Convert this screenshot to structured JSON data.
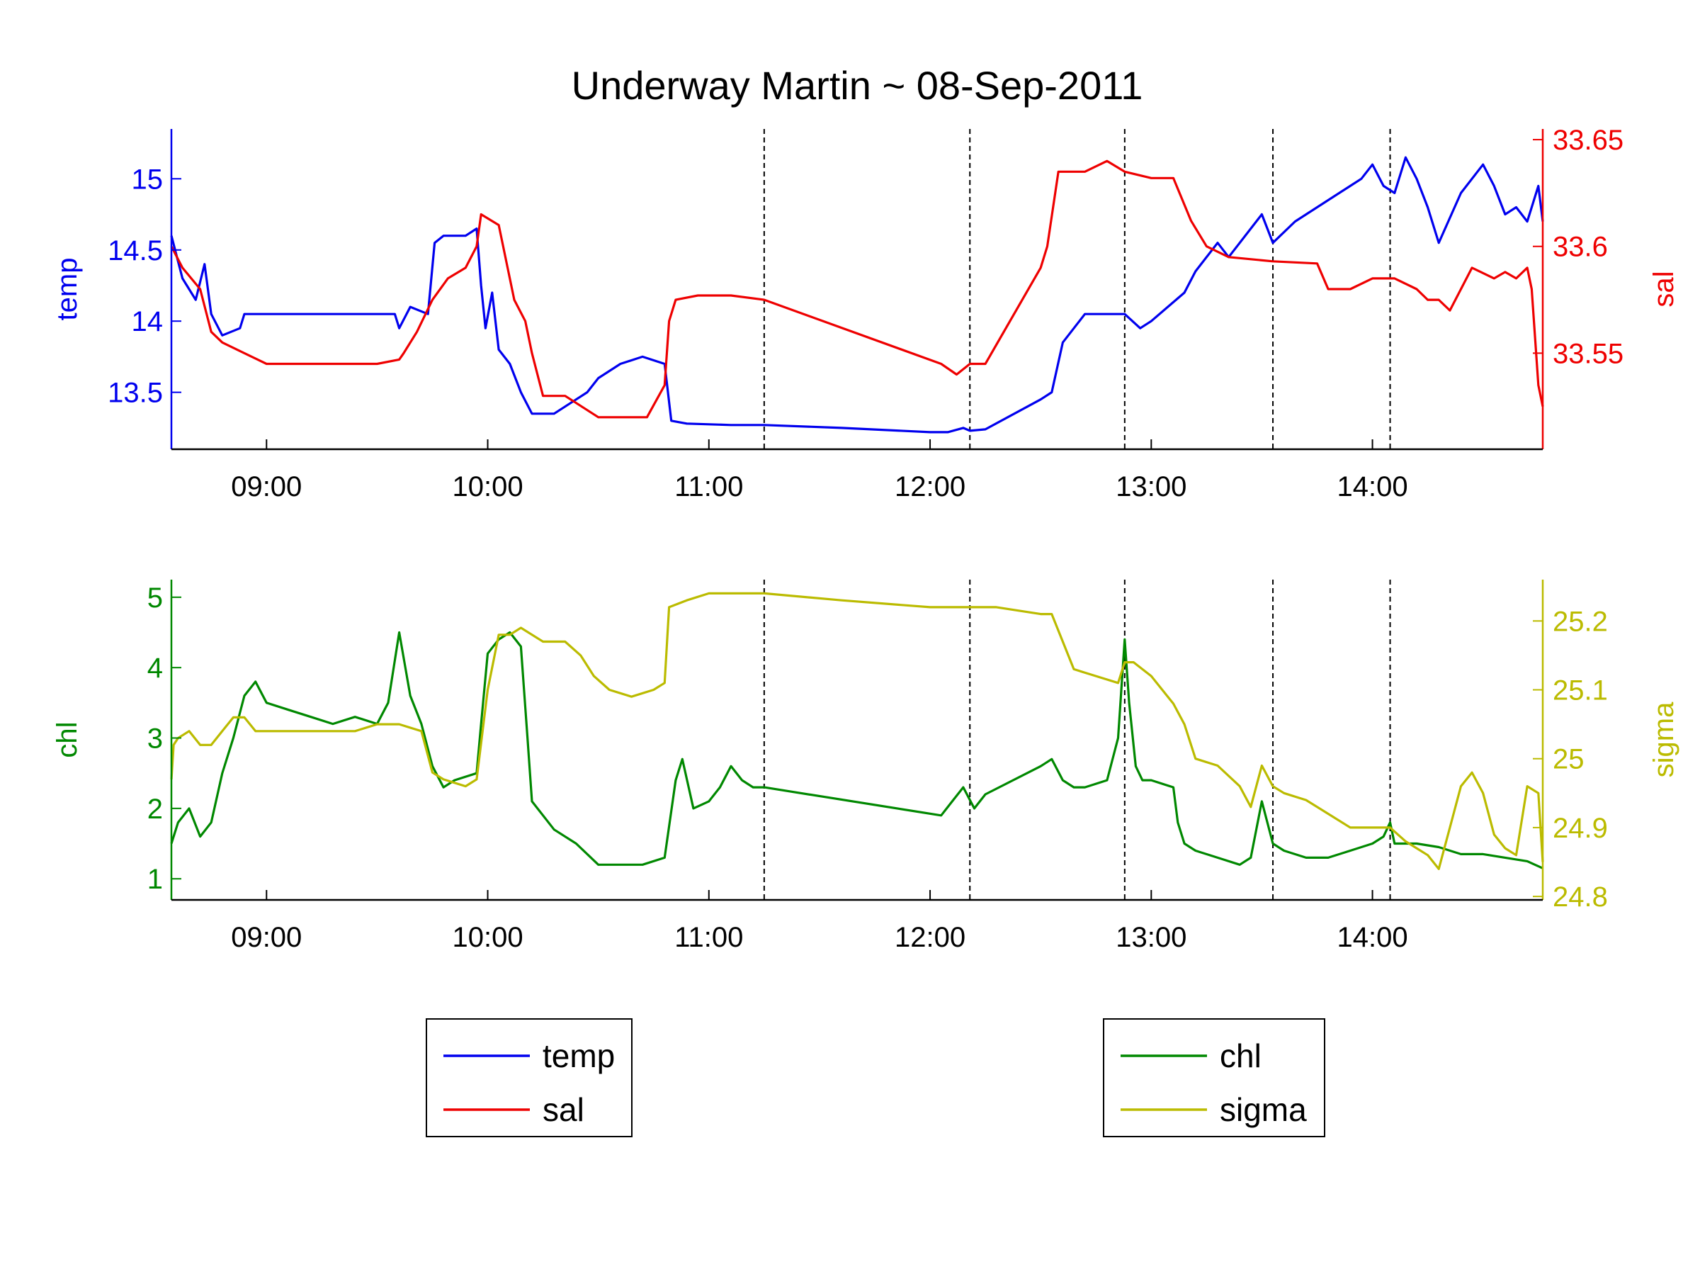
{
  "chart_data": [
    {
      "type": "line",
      "title": "Underway Martin ~ 08-Sep-2011",
      "x_ticks": [
        "09:00",
        "10:00",
        "11:00",
        "12:00",
        "13:00",
        "14:00"
      ],
      "x_tick_hours": [
        9,
        10,
        11,
        12,
        13,
        14
      ],
      "xlim_hours": [
        8.57,
        14.77
      ],
      "event_markers_hours": [
        11.25,
        12.18,
        12.88,
        13.55,
        14.08
      ],
      "left_axis": {
        "label": "temp",
        "color": "#0000ee",
        "ylim": [
          13.1,
          15.35
        ],
        "ticks": [
          13.5,
          14,
          14.5,
          15
        ],
        "tick_labels": [
          "13.5",
          "14",
          "14.5",
          "15"
        ]
      },
      "right_axis": {
        "label": "sal",
        "color": "#ee0000",
        "ylim": [
          33.505,
          33.655
        ],
        "ticks": [
          33.55,
          33.6,
          33.65
        ],
        "tick_labels": [
          "33.55",
          "33.6",
          "33.65"
        ]
      },
      "series": [
        {
          "name": "temp",
          "axis": "left",
          "color": "#0000ee",
          "x": [
            8.57,
            8.62,
            8.68,
            8.72,
            8.75,
            8.8,
            8.88,
            8.9,
            9.0,
            9.2,
            9.4,
            9.58,
            9.6,
            9.65,
            9.73,
            9.76,
            9.8,
            9.9,
            9.95,
            9.97,
            9.99,
            10.02,
            10.05,
            10.1,
            10.15,
            10.2,
            10.3,
            10.4,
            10.45,
            10.5,
            10.6,
            10.7,
            10.8,
            10.83,
            10.9,
            11.1,
            11.25,
            11.6,
            12.0,
            12.08,
            12.15,
            12.18,
            12.25,
            12.5,
            12.55,
            12.6,
            12.7,
            12.8,
            12.88,
            12.95,
            13.0,
            13.15,
            13.2,
            13.3,
            13.35,
            13.45,
            13.5,
            13.55,
            13.65,
            13.75,
            13.85,
            13.95,
            14.0,
            14.05,
            14.1,
            14.15,
            14.2,
            14.25,
            14.3,
            14.4,
            14.5,
            14.55,
            14.6,
            14.65,
            14.7,
            14.75,
            14.77
          ],
          "y": [
            14.6,
            14.3,
            14.15,
            14.4,
            14.05,
            13.9,
            13.95,
            14.05,
            14.05,
            14.05,
            14.05,
            14.05,
            13.95,
            14.1,
            14.05,
            14.55,
            14.6,
            14.6,
            14.65,
            14.25,
            13.95,
            14.2,
            13.8,
            13.7,
            13.5,
            13.35,
            13.35,
            13.45,
            13.5,
            13.6,
            13.7,
            13.75,
            13.7,
            13.3,
            13.28,
            13.27,
            13.27,
            13.25,
            13.22,
            13.22,
            13.25,
            13.23,
            13.24,
            13.45,
            13.5,
            13.85,
            14.05,
            14.05,
            14.05,
            13.95,
            14.0,
            14.2,
            14.35,
            14.55,
            14.45,
            14.65,
            14.75,
            14.55,
            14.7,
            14.8,
            14.9,
            15.0,
            15.1,
            14.95,
            14.9,
            15.15,
            15.0,
            14.8,
            14.55,
            14.9,
            15.1,
            14.95,
            14.75,
            14.8,
            14.7,
            14.95,
            14.7
          ]
        },
        {
          "name": "sal",
          "axis": "right",
          "color": "#ee0000",
          "x": [
            8.57,
            8.62,
            8.7,
            8.75,
            8.8,
            8.9,
            9.0,
            9.2,
            9.5,
            9.6,
            9.62,
            9.68,
            9.75,
            9.82,
            9.9,
            9.95,
            9.97,
            10.05,
            10.12,
            10.17,
            10.2,
            10.25,
            10.35,
            10.5,
            10.6,
            10.72,
            10.8,
            10.82,
            10.85,
            10.95,
            11.1,
            11.25,
            12.05,
            12.12,
            12.18,
            12.25,
            12.5,
            12.53,
            12.58,
            12.62,
            12.7,
            12.8,
            12.88,
            13.0,
            13.1,
            13.18,
            13.25,
            13.35,
            13.55,
            13.75,
            13.8,
            13.9,
            14.0,
            14.1,
            14.2,
            14.25,
            14.3,
            14.35,
            14.45,
            14.55,
            14.6,
            14.65,
            14.7,
            14.72,
            14.75,
            14.77
          ],
          "y": [
            33.6,
            33.59,
            33.58,
            33.56,
            33.555,
            33.55,
            33.545,
            33.545,
            33.545,
            33.547,
            33.55,
            33.56,
            33.575,
            33.585,
            33.59,
            33.6,
            33.615,
            33.61,
            33.575,
            33.565,
            33.55,
            33.53,
            33.53,
            33.52,
            33.52,
            33.52,
            33.535,
            33.565,
            33.575,
            33.577,
            33.577,
            33.575,
            33.545,
            33.54,
            33.545,
            33.545,
            33.59,
            33.6,
            33.635,
            33.635,
            33.635,
            33.64,
            33.635,
            33.632,
            33.632,
            33.612,
            33.6,
            33.595,
            33.593,
            33.592,
            33.58,
            33.58,
            33.585,
            33.585,
            33.58,
            33.575,
            33.575,
            33.57,
            33.59,
            33.585,
            33.588,
            33.585,
            33.59,
            33.58,
            33.535,
            33.525
          ]
        }
      ],
      "legend": {
        "placement": "below-left",
        "entries": [
          "temp",
          "sal"
        ]
      }
    },
    {
      "type": "line",
      "x_ticks": [
        "09:00",
        "10:00",
        "11:00",
        "12:00",
        "13:00",
        "14:00"
      ],
      "x_tick_hours": [
        9,
        10,
        11,
        12,
        13,
        14
      ],
      "xlim_hours": [
        8.57,
        14.77
      ],
      "event_markers_hours": [
        11.25,
        12.18,
        12.88,
        13.55,
        14.08
      ],
      "left_axis": {
        "label": "chl",
        "color": "#008800",
        "ylim": [
          0.7,
          5.25
        ],
        "ticks": [
          1,
          2,
          3,
          4,
          5
        ],
        "tick_labels": [
          "1",
          "2",
          "3",
          "4",
          "5"
        ]
      },
      "right_axis": {
        "label": "sigma",
        "color": "#bbbb00",
        "ylim": [
          24.795,
          25.26
        ],
        "ticks": [
          24.8,
          24.9,
          25,
          25.1,
          25.2
        ],
        "tick_labels": [
          "24.8",
          "24.9",
          "25",
          "25.1",
          "25.2"
        ]
      },
      "series": [
        {
          "name": "chl",
          "axis": "left",
          "color": "#008800",
          "x": [
            8.57,
            8.6,
            8.65,
            8.7,
            8.75,
            8.8,
            8.85,
            8.9,
            8.95,
            9.0,
            9.1,
            9.2,
            9.3,
            9.4,
            9.5,
            9.55,
            9.6,
            9.65,
            9.7,
            9.75,
            9.8,
            9.85,
            9.95,
            9.97,
            10.0,
            10.05,
            10.1,
            10.15,
            10.18,
            10.2,
            10.3,
            10.4,
            10.5,
            10.6,
            10.7,
            10.8,
            10.85,
            10.88,
            10.93,
            11.0,
            11.05,
            11.1,
            11.15,
            11.2,
            11.25,
            12.05,
            12.1,
            12.15,
            12.2,
            12.25,
            12.5,
            12.55,
            12.6,
            12.65,
            12.7,
            12.8,
            12.85,
            12.88,
            12.9,
            12.93,
            12.96,
            13.0,
            13.1,
            13.12,
            13.15,
            13.2,
            13.3,
            13.4,
            13.45,
            13.5,
            13.55,
            13.6,
            13.7,
            13.8,
            13.9,
            14.0,
            14.05,
            14.08,
            14.1,
            14.2,
            14.3,
            14.4,
            14.5,
            14.6,
            14.7,
            14.77
          ],
          "y": [
            1.5,
            1.8,
            2.0,
            1.6,
            1.8,
            2.5,
            3.0,
            3.6,
            3.8,
            3.5,
            3.4,
            3.3,
            3.2,
            3.3,
            3.2,
            3.5,
            4.5,
            3.6,
            3.2,
            2.6,
            2.3,
            2.4,
            2.5,
            3.2,
            4.2,
            4.4,
            4.5,
            4.3,
            3.0,
            2.1,
            1.7,
            1.5,
            1.2,
            1.2,
            1.2,
            1.3,
            2.4,
            2.7,
            2.0,
            2.1,
            2.3,
            2.6,
            2.4,
            2.3,
            2.3,
            1.9,
            2.1,
            2.3,
            2.0,
            2.2,
            2.6,
            2.7,
            2.4,
            2.3,
            2.3,
            2.4,
            3.0,
            4.4,
            3.5,
            2.6,
            2.4,
            2.4,
            2.3,
            1.8,
            1.5,
            1.4,
            1.3,
            1.2,
            1.3,
            2.1,
            1.5,
            1.4,
            1.3,
            1.3,
            1.4,
            1.5,
            1.6,
            1.8,
            1.5,
            1.5,
            1.45,
            1.35,
            1.35,
            1.3,
            1.25,
            1.15
          ]
        },
        {
          "name": "sigma",
          "axis": "right",
          "color": "#bbbb00",
          "x": [
            8.57,
            8.58,
            8.6,
            8.65,
            8.7,
            8.75,
            8.8,
            8.85,
            8.9,
            8.95,
            9.0,
            9.2,
            9.4,
            9.5,
            9.6,
            9.7,
            9.75,
            9.8,
            9.9,
            9.95,
            10.0,
            10.05,
            10.1,
            10.15,
            10.25,
            10.35,
            10.42,
            10.48,
            10.55,
            10.65,
            10.75,
            10.8,
            10.82,
            10.9,
            11.0,
            11.25,
            11.6,
            12.0,
            12.18,
            12.3,
            12.5,
            12.55,
            12.6,
            12.65,
            12.75,
            12.85,
            12.88,
            12.92,
            13.0,
            13.1,
            13.15,
            13.2,
            13.3,
            13.4,
            13.45,
            13.5,
            13.55,
            13.6,
            13.7,
            13.8,
            13.9,
            14.0,
            14.08,
            14.15,
            14.2,
            14.25,
            14.3,
            14.35,
            14.4,
            14.45,
            14.5,
            14.55,
            14.6,
            14.65,
            14.7,
            14.75,
            14.77
          ],
          "y": [
            24.97,
            25.02,
            25.03,
            25.04,
            25.02,
            25.02,
            25.04,
            25.06,
            25.06,
            25.04,
            25.04,
            25.04,
            25.04,
            25.05,
            25.05,
            25.04,
            24.98,
            24.97,
            24.96,
            24.97,
            25.1,
            25.18,
            25.18,
            25.19,
            25.17,
            25.17,
            25.15,
            25.12,
            25.1,
            25.09,
            25.1,
            25.11,
            25.22,
            25.23,
            25.24,
            25.24,
            25.23,
            25.22,
            25.22,
            25.22,
            25.21,
            25.21,
            25.17,
            25.13,
            25.12,
            25.11,
            25.14,
            25.14,
            25.12,
            25.08,
            25.05,
            25.0,
            24.99,
            24.96,
            24.93,
            24.99,
            24.96,
            24.95,
            24.94,
            24.92,
            24.9,
            24.9,
            24.9,
            24.88,
            24.87,
            24.86,
            24.84,
            24.9,
            24.96,
            24.98,
            24.95,
            24.89,
            24.87,
            24.86,
            24.96,
            24.95,
            24.85
          ]
        }
      ],
      "legend": {
        "placement": "below-right",
        "entries": [
          "chl",
          "sigma"
        ]
      }
    }
  ]
}
